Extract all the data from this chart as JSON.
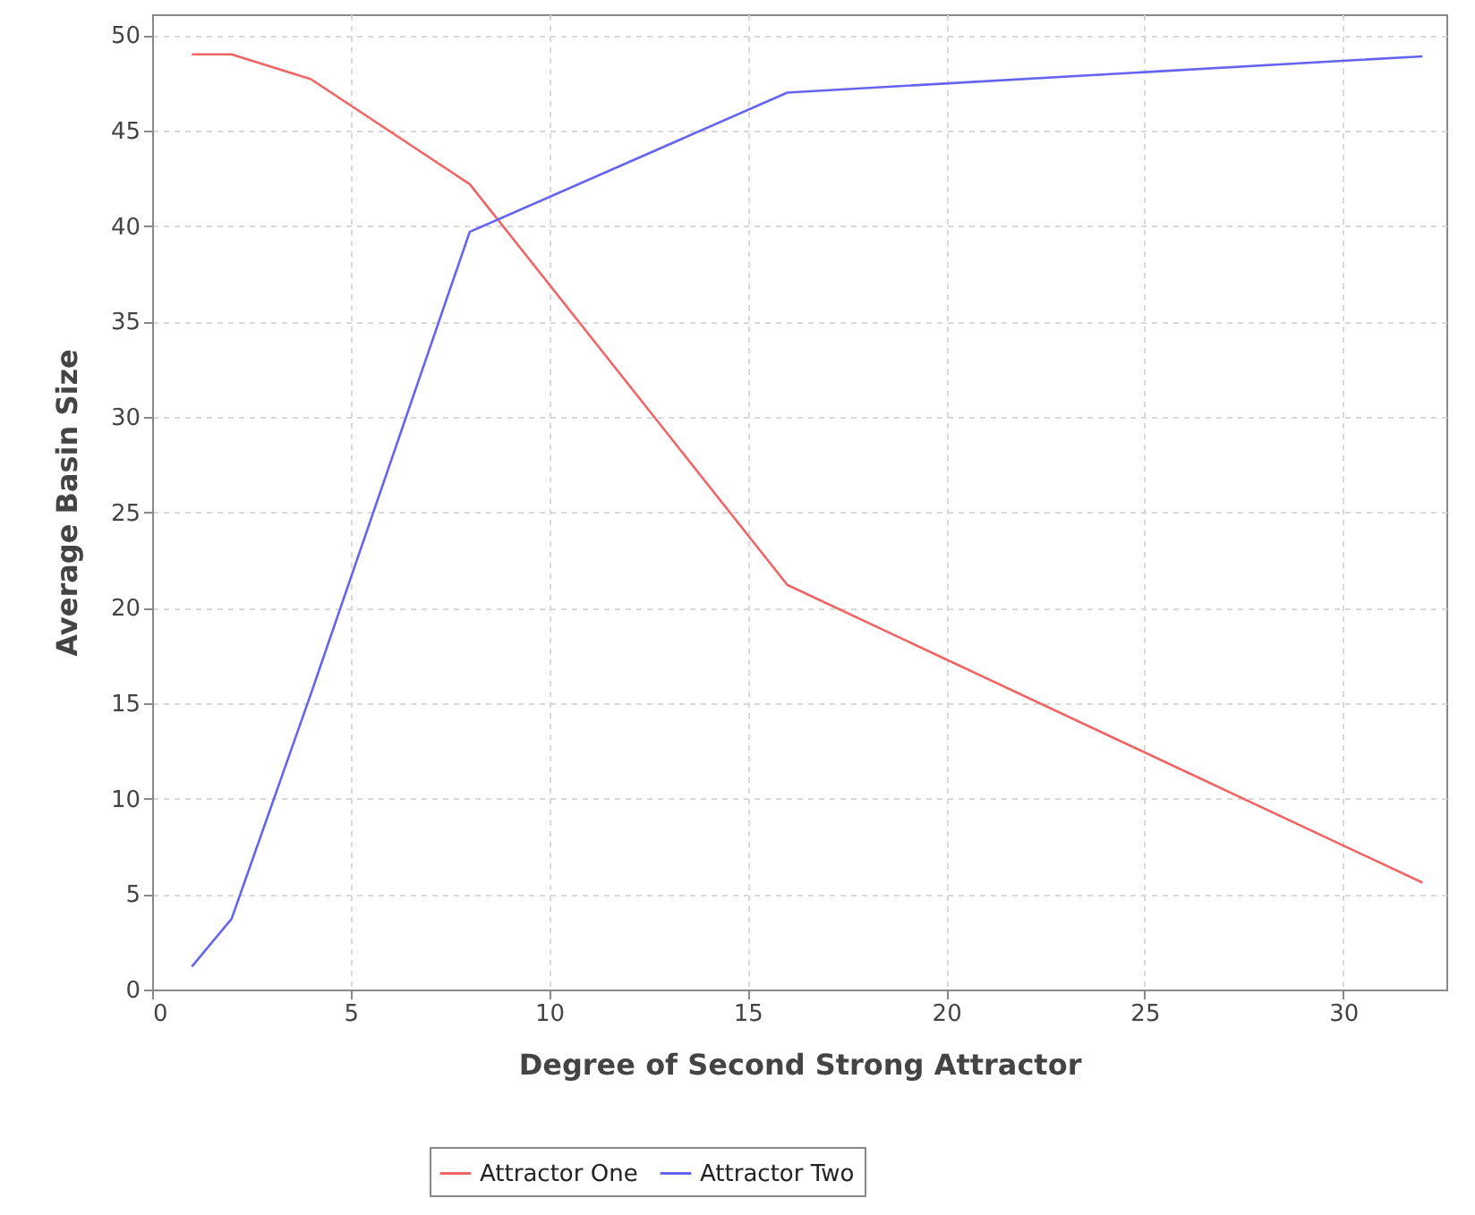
{
  "chart_data": {
    "type": "line",
    "xlabel": "Degree of Second Strong Attractor",
    "ylabel": "Average Basin Size",
    "x": [
      1,
      2,
      4,
      8,
      16,
      32
    ],
    "series": [
      {
        "name": "Attractor One",
        "color": "#f06464",
        "values": [
          49,
          49,
          47.7,
          42.2,
          21.2,
          5.6
        ]
      },
      {
        "name": "Attractor Two",
        "color": "#6464f0",
        "values": [
          1.2,
          3.7,
          15.5,
          39.7,
          47,
          48.9
        ]
      }
    ],
    "xlim": [
      0,
      32.6
    ],
    "xticks": [
      0,
      5,
      10,
      15,
      20,
      25,
      30
    ],
    "ylim": [
      0,
      51.1
    ],
    "yticks": [
      0,
      5,
      10,
      15,
      20,
      25,
      30,
      35,
      40,
      45,
      50
    ],
    "grid": true,
    "legend": "bottom",
    "marker": "none",
    "line_style": "solid"
  }
}
